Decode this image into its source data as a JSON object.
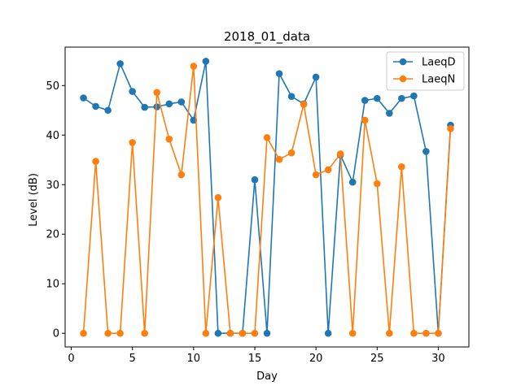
{
  "chart_data": {
    "type": "line",
    "title": "2018_01_data",
    "xlabel": "Day",
    "ylabel": "Level (dB)",
    "xlim": [
      -0.5,
      32.5
    ],
    "ylim": [
      -2.75,
      57.75
    ],
    "xticks": [
      0,
      5,
      10,
      15,
      20,
      25,
      30
    ],
    "yticks": [
      0,
      10,
      20,
      30,
      40,
      50
    ],
    "grid": false,
    "legend_position": "top-right",
    "x": [
      1,
      2,
      3,
      4,
      5,
      6,
      7,
      8,
      9,
      10,
      11,
      12,
      13,
      14,
      15,
      16,
      17,
      18,
      19,
      20,
      21,
      22,
      23,
      24,
      25,
      26,
      27,
      28,
      29,
      30,
      31
    ],
    "series": [
      {
        "name": "LaeqD",
        "color": "#1f77b4",
        "marker": "circle",
        "values": [
          47.5,
          45.8,
          45.0,
          54.4,
          48.8,
          45.6,
          45.7,
          46.3,
          46.7,
          43.0,
          54.9,
          0,
          0,
          0,
          31.0,
          0,
          52.4,
          47.8,
          46.3,
          51.7,
          0,
          36.0,
          30.5,
          47.0,
          47.4,
          44.4,
          47.4,
          47.9,
          36.7,
          0,
          42.0
        ]
      },
      {
        "name": "LaeqN",
        "color": "#ff7f0e",
        "marker": "circle",
        "values": [
          0,
          34.7,
          0,
          0,
          38.5,
          0,
          48.6,
          39.2,
          32.0,
          53.9,
          0,
          27.4,
          0,
          0,
          0,
          39.5,
          35.1,
          36.4,
          46.2,
          32.0,
          33.0,
          36.2,
          0,
          43.0,
          30.2,
          0,
          33.6,
          0,
          0,
          0,
          41.3
        ]
      }
    ]
  }
}
